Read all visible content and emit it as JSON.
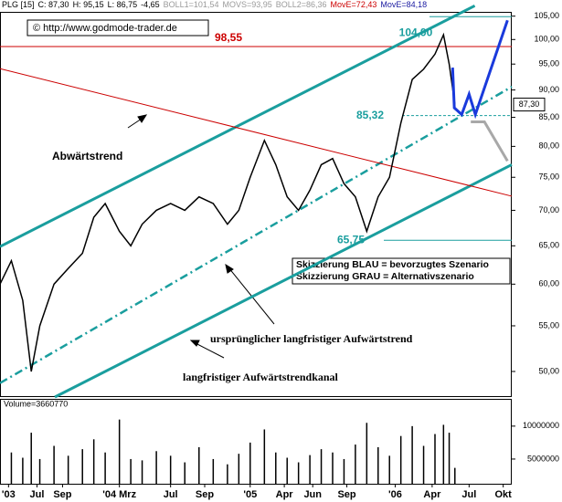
{
  "header": [
    {
      "text": "PLG [15]",
      "color": "#000000"
    },
    {
      "text": "C: 87,30",
      "color": "#000000"
    },
    {
      "text": "H: 95,15",
      "color": "#000000"
    },
    {
      "text": "L: 86,75",
      "color": "#000000"
    },
    {
      "text": "-4,65",
      "color": "#000000"
    },
    {
      "text": "BOLL1=101,54",
      "color": "#9a9a9a"
    },
    {
      "text": "MOVS=93,95",
      "color": "#9a9a9a"
    },
    {
      "text": "BOLL2=86,36",
      "color": "#9a9a9a"
    },
    {
      "text": "MovE=72,43",
      "color": "#cc0000"
    },
    {
      "text": "MovE=84,18",
      "color": "#1a1aa0"
    }
  ],
  "copyright": "© http://www.godmode-trader.de",
  "chart_data": {
    "type": "line",
    "log_scale": true,
    "x": [
      0,
      4,
      8,
      11,
      14,
      19,
      24,
      29,
      33,
      37,
      42,
      46,
      50,
      55,
      60,
      65,
      70,
      75,
      80,
      84,
      88,
      93,
      97,
      101,
      105,
      109,
      113,
      117,
      121,
      125,
      129,
      133,
      137,
      141,
      145,
      149,
      153,
      156,
      158,
      160
    ],
    "values": [
      60,
      63,
      58,
      50,
      55,
      60,
      62,
      64,
      69,
      71,
      67,
      65,
      68,
      70,
      71,
      70,
      72,
      71,
      68,
      70,
      75,
      81,
      77,
      72,
      70,
      73,
      77,
      78,
      74,
      72,
      67,
      72,
      75,
      84,
      92,
      94,
      97,
      101,
      95,
      87.3
    ],
    "color": "#000000",
    "xlim": [
      0,
      180
    ],
    "xticks": [
      {
        "value": 3,
        "label": "'03"
      },
      {
        "value": 13,
        "label": "Jul"
      },
      {
        "value": 22,
        "label": "Sep"
      },
      {
        "value": 42,
        "label": "'04 Mrz"
      },
      {
        "value": 60,
        "label": "Jul"
      },
      {
        "value": 72,
        "label": "Sep"
      },
      {
        "value": 88,
        "label": "'05"
      },
      {
        "value": 100,
        "label": "Apr"
      },
      {
        "value": 110,
        "label": "Jun"
      },
      {
        "value": 122,
        "label": "Sep"
      },
      {
        "value": 139,
        "label": "'06"
      },
      {
        "value": 152,
        "label": "Apr"
      },
      {
        "value": 165,
        "label": "Jul"
      },
      {
        "value": 177,
        "label": "Okt"
      }
    ],
    "ylim": [
      47.4,
      108.6
    ],
    "yticks": [
      {
        "value": 105,
        "label": "105,00"
      },
      {
        "value": 100,
        "label": "100,00"
      },
      {
        "value": 95,
        "label": "95,00"
      },
      {
        "value": 90,
        "label": "90,00"
      },
      {
        "value": 85,
        "label": "85,00"
      },
      {
        "value": 80,
        "label": "80,00"
      },
      {
        "value": 75,
        "label": "75,00"
      },
      {
        "value": 70,
        "label": "70,00"
      },
      {
        "value": 65,
        "label": "65,00"
      },
      {
        "value": 60,
        "label": "60,00"
      },
      {
        "value": 55,
        "label": "55,00"
      },
      {
        "value": 50,
        "label": "50,00"
      }
    ],
    "last_price": {
      "value": 87.3,
      "label": "87,30"
    },
    "levels": [
      {
        "value": 104.9,
        "label": "104,90",
        "color": "#1a9e9e",
        "dashed": false
      },
      {
        "value": 98.55,
        "label": "98,55",
        "color": "#cc0000",
        "dashed": false
      },
      {
        "value": 85.32,
        "label": "85,32",
        "color": "#1a9e9e",
        "dashed": true
      },
      {
        "value": 65.75,
        "label": "65,75",
        "color": "#1a9e9e",
        "dashed": false
      }
    ],
    "trend_lines": [
      {
        "x": [
          0,
          167
        ],
        "y": [
          64.9,
          107.3
        ],
        "color": "#1a9e9e",
        "style": "solid"
      },
      {
        "x": [
          19.3,
          180
        ],
        "y": [
          47.4,
          77.0
        ],
        "color": "#1a9e9e",
        "style": "solid"
      },
      {
        "x": [
          0,
          180
        ],
        "y": [
          48.8,
          90.6
        ],
        "color": "#1a9e9e",
        "style": "dashdot"
      },
      {
        "x": [
          0,
          180
        ],
        "y": [
          94.1,
          72.1
        ],
        "color": "#cc0000",
        "style": "thin"
      }
    ],
    "scenarios": [
      {
        "x": [
          159.2,
          159.8,
          162.4,
          165,
          167.2,
          178.5
        ],
        "y": [
          94.3,
          86.7,
          85.5,
          89.2,
          85.5,
          104.1
        ],
        "color": "#1a3adc"
      },
      {
        "x": [
          165.6,
          170.4,
          178.5
        ],
        "y": [
          84.2,
          84.2,
          77.6
        ],
        "color": "#a8a8a8"
      }
    ],
    "annotations": [
      "Abwärtstrend",
      "ursprünglicher langfristiger Aufwärtstrend",
      "langfristiger Aufwärtstrendkanal",
      "Skizzierung BLAU = bevorzugtes Szenario",
      "Skizzierung GRAU = Alternativszenario"
    ],
    "volume": {
      "label": "Volume=3660770",
      "color": "#000000",
      "values": [
        4500000,
        6000000,
        5200000,
        9000000,
        5000000,
        7000000,
        5500000,
        6500000,
        8000000,
        6000000,
        11000000,
        5000000,
        4800000,
        6200000,
        5500000,
        4500000,
        6800000,
        5000000,
        4200000,
        5800000,
        7500000,
        9500000,
        6000000,
        5200000,
        4500000,
        5600000,
        6500000,
        6000000,
        5000000,
        7200000,
        10500000,
        6800000,
        5500000,
        8500000,
        10000000,
        7000000,
        8800000,
        10200000,
        9000000,
        3660770
      ],
      "ylim": [
        1250000,
        14000000
      ],
      "yticks": [
        10000000,
        5000000
      ]
    }
  }
}
